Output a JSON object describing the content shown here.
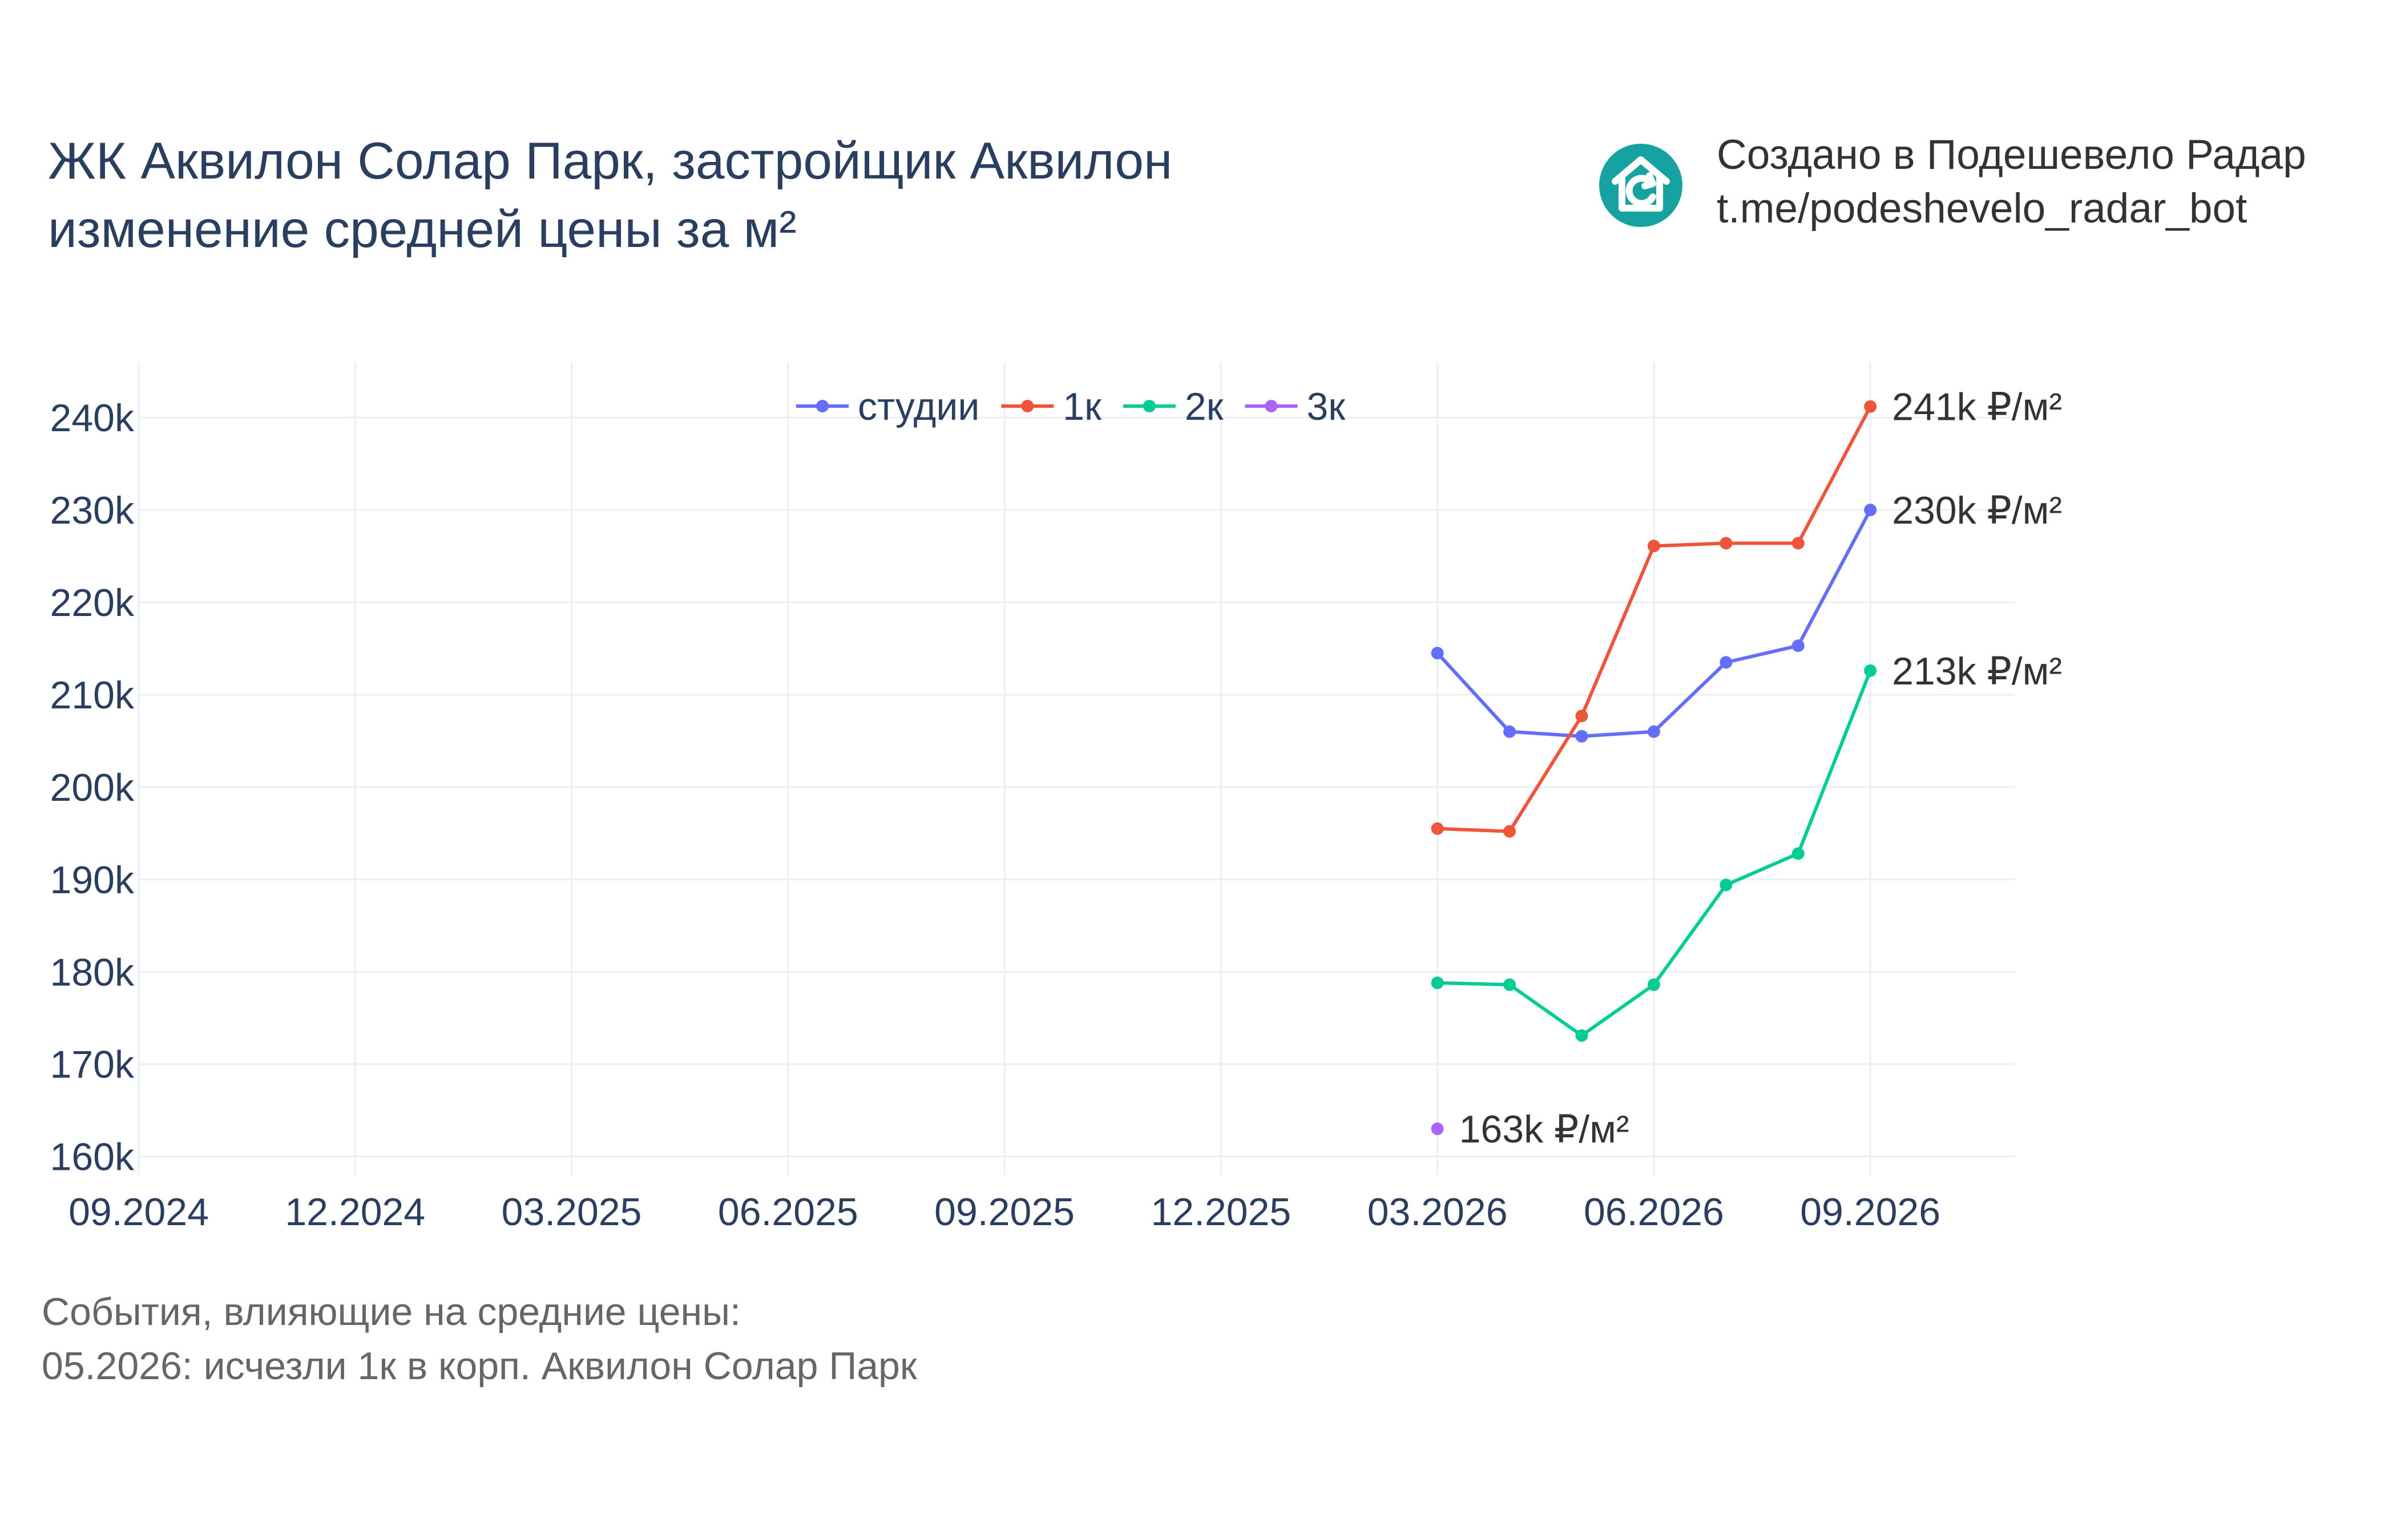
{
  "title": {
    "line1": "ЖК Аквилон Солар Парк, застройщик Аквилон",
    "line2": "изменение средней цены за м²"
  },
  "credit": {
    "line1": "Создано в Подешевело Радар",
    "line2": "t.me/podeshevelo_radar_bot",
    "logo_icon": "house-refresh-icon",
    "logo_color": "#17a2a2"
  },
  "footnote": {
    "line1": "События, влияющие на средние цены:",
    "line2": "05.2026: исчезли 1к в корп. Аквилон Солар Парк"
  },
  "chart_data": {
    "type": "line",
    "title": "ЖК Аквилон Солар Парк, застройщик Аквилон изменение средней цены за м²",
    "xlabel": "",
    "ylabel": "",
    "x_tick_labels": [
      "09.2024",
      "12.2024",
      "03.2025",
      "06.2025",
      "09.2025",
      "12.2025",
      "03.2026",
      "06.2026",
      "09.2026"
    ],
    "y_tick_labels": [
      "160k",
      "170k",
      "180k",
      "190k",
      "200k",
      "210k",
      "220k",
      "230k",
      "240k"
    ],
    "y_ticks": [
      160000,
      170000,
      180000,
      190000,
      200000,
      210000,
      220000,
      230000,
      240000
    ],
    "xlim": [
      "2024-09",
      "2026-11"
    ],
    "ylim": [
      158000,
      246000
    ],
    "grid": true,
    "legend_position": "top-center",
    "x": [
      "2026-03",
      "2026-04",
      "2026-05",
      "2026-06",
      "2026-07",
      "2026-08",
      "2026-09"
    ],
    "series": [
      {
        "name": "студии",
        "color": "#636efa",
        "values": [
          214500,
          206000,
          205500,
          206000,
          213500,
          215300,
          230000
        ],
        "end_label": "230k ₽/м²"
      },
      {
        "name": "1к",
        "color": "#ef553b",
        "values": [
          195500,
          195200,
          207700,
          226100,
          226400,
          226400,
          241200
        ],
        "end_label": "241k ₽/м²"
      },
      {
        "name": "2к",
        "color": "#00cc96",
        "values": [
          178800,
          178600,
          173100,
          178600,
          189400,
          192800,
          212600
        ],
        "end_label": "213k ₽/м²"
      },
      {
        "name": "3к",
        "color": "#ab63fa",
        "values": [
          163000,
          null,
          null,
          null,
          null,
          null,
          null
        ],
        "end_label": "163k ₽/м²"
      }
    ]
  }
}
